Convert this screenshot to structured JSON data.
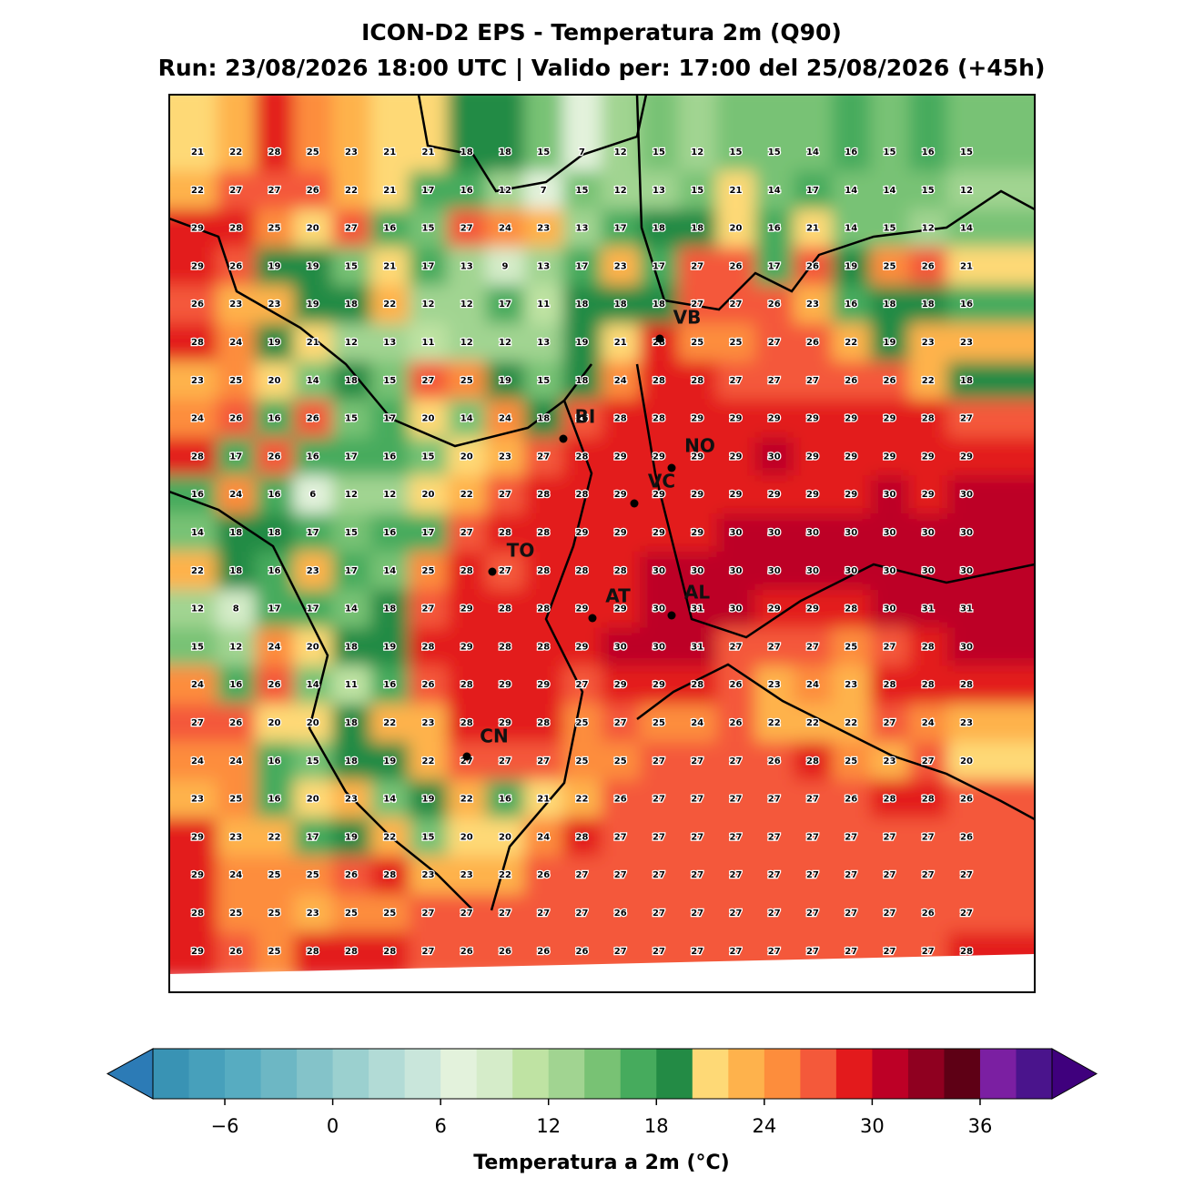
{
  "title": "ICON-D2 EPS - Temperatura 2m (Q90)",
  "subtitle": "Run: 23/08/2026 18:00 UTC | Valido per: 17:00 del 25/08/2026 (+45h)",
  "grid": [
    [
      21,
      22,
      28,
      25,
      23,
      21,
      21,
      18,
      18,
      15,
      7,
      12,
      15,
      12,
      15,
      15,
      14,
      16,
      15,
      16,
      15
    ],
    [
      22,
      27,
      27,
      26,
      22,
      21,
      17,
      16,
      12,
      7,
      15,
      12,
      13,
      15,
      21,
      14,
      17,
      14,
      14,
      15,
      12
    ],
    [
      29,
      28,
      25,
      20,
      27,
      16,
      15,
      27,
      24,
      23,
      13,
      17,
      18,
      18,
      20,
      16,
      21,
      14,
      15,
      12,
      14
    ],
    [
      29,
      26,
      19,
      19,
      15,
      21,
      17,
      13,
      9,
      13,
      17,
      23,
      17,
      27,
      26,
      17,
      26,
      19,
      25,
      26,
      21
    ],
    [
      26,
      23,
      23,
      19,
      18,
      22,
      12,
      12,
      17,
      11,
      18,
      18,
      18,
      27,
      27,
      26,
      23,
      16,
      18,
      18,
      16
    ],
    [
      28,
      24,
      19,
      21,
      12,
      13,
      11,
      12,
      12,
      13,
      19,
      21,
      28,
      25,
      25,
      27,
      26,
      22,
      19,
      23,
      23
    ],
    [
      23,
      25,
      20,
      14,
      18,
      15,
      27,
      25,
      19,
      15,
      18,
      24,
      28,
      28,
      27,
      27,
      27,
      26,
      26,
      22,
      18
    ],
    [
      24,
      26,
      16,
      26,
      15,
      17,
      20,
      14,
      24,
      18,
      26,
      28,
      28,
      29,
      29,
      29,
      29,
      29,
      29,
      28,
      27
    ],
    [
      28,
      17,
      26,
      16,
      17,
      16,
      15,
      20,
      23,
      27,
      28,
      29,
      29,
      29,
      29,
      30,
      29,
      29,
      29,
      29,
      29
    ],
    [
      16,
      24,
      16,
      6,
      12,
      12,
      20,
      22,
      27,
      28,
      28,
      29,
      29,
      29,
      29,
      29,
      29,
      29,
      30,
      29,
      30
    ],
    [
      14,
      18,
      18,
      17,
      15,
      16,
      17,
      27,
      28,
      28,
      29,
      29,
      29,
      29,
      30,
      30,
      30,
      30,
      30,
      30,
      30
    ],
    [
      22,
      18,
      16,
      23,
      17,
      14,
      25,
      28,
      27,
      28,
      28,
      28,
      30,
      30,
      30,
      30,
      30,
      30,
      30,
      30,
      30
    ],
    [
      12,
      8,
      17,
      17,
      14,
      18,
      27,
      29,
      28,
      28,
      29,
      29,
      30,
      31,
      30,
      29,
      29,
      28,
      30,
      31,
      31
    ],
    [
      15,
      12,
      24,
      20,
      18,
      19,
      28,
      29,
      28,
      28,
      29,
      30,
      30,
      31,
      27,
      27,
      27,
      25,
      27,
      28,
      30
    ],
    [
      24,
      16,
      26,
      14,
      11,
      16,
      26,
      28,
      29,
      29,
      27,
      29,
      29,
      28,
      26,
      23,
      24,
      23,
      28,
      28,
      28
    ],
    [
      27,
      26,
      20,
      20,
      18,
      22,
      23,
      28,
      29,
      28,
      25,
      27,
      25,
      24,
      26,
      22,
      22,
      22,
      27,
      24,
      23
    ],
    [
      24,
      24,
      16,
      15,
      18,
      19,
      22,
      27,
      27,
      27,
      25,
      25,
      27,
      27,
      27,
      26,
      28,
      25,
      23,
      27,
      20
    ],
    [
      23,
      25,
      16,
      20,
      23,
      14,
      19,
      22,
      16,
      21,
      22,
      26,
      27,
      27,
      27,
      27,
      27,
      26,
      28,
      28,
      26
    ],
    [
      29,
      23,
      22,
      17,
      19,
      22,
      15,
      20,
      20,
      24,
      28,
      27,
      27,
      27,
      27,
      27,
      27,
      27,
      27,
      27,
      26
    ],
    [
      29,
      24,
      25,
      25,
      26,
      28,
      23,
      23,
      22,
      26,
      27,
      27,
      27,
      27,
      27,
      27,
      27,
      27,
      27,
      27,
      27
    ],
    [
      28,
      25,
      25,
      23,
      25,
      25,
      27,
      27,
      27,
      27,
      27,
      26,
      27,
      27,
      27,
      27,
      27,
      27,
      27,
      26,
      27
    ],
    [
      29,
      26,
      25,
      28,
      28,
      28,
      27,
      26,
      26,
      26,
      26,
      27,
      27,
      27,
      27,
      27,
      27,
      27,
      27,
      27,
      28
    ]
  ],
  "cities": [
    "VB",
    "BI",
    "NO",
    "VC",
    "TO",
    "AT",
    "AL",
    "CN"
  ],
  "colorbar": {
    "label": "Temperatura a 2m (°C)",
    "lim": [
      -10,
      40
    ],
    "ticks": [
      {
        "value": -6,
        "label": "−6"
      },
      0,
      6,
      12,
      18,
      24,
      30,
      36
    ],
    "under": "#2c7bb6",
    "over": "#3f007d",
    "colors": [
      "#3993b4",
      "#47a0bb",
      "#57acc1",
      "#6db7c4",
      "#84c3c9",
      "#9bd0cf",
      "#b2dbd6",
      "#c9e6db",
      "#e3f2dc",
      "#d5ecc9",
      "#bfe3a3",
      "#a1d491",
      "#78c274",
      "#46ab5d",
      "#238b45",
      "#fed976",
      "#feb24c",
      "#fd8d3c",
      "#f4593a",
      "#e31a1c",
      "#bd0026",
      "#8f0020",
      "#5e0015",
      "#7b1fa2",
      "#4a148c"
    ]
  }
}
